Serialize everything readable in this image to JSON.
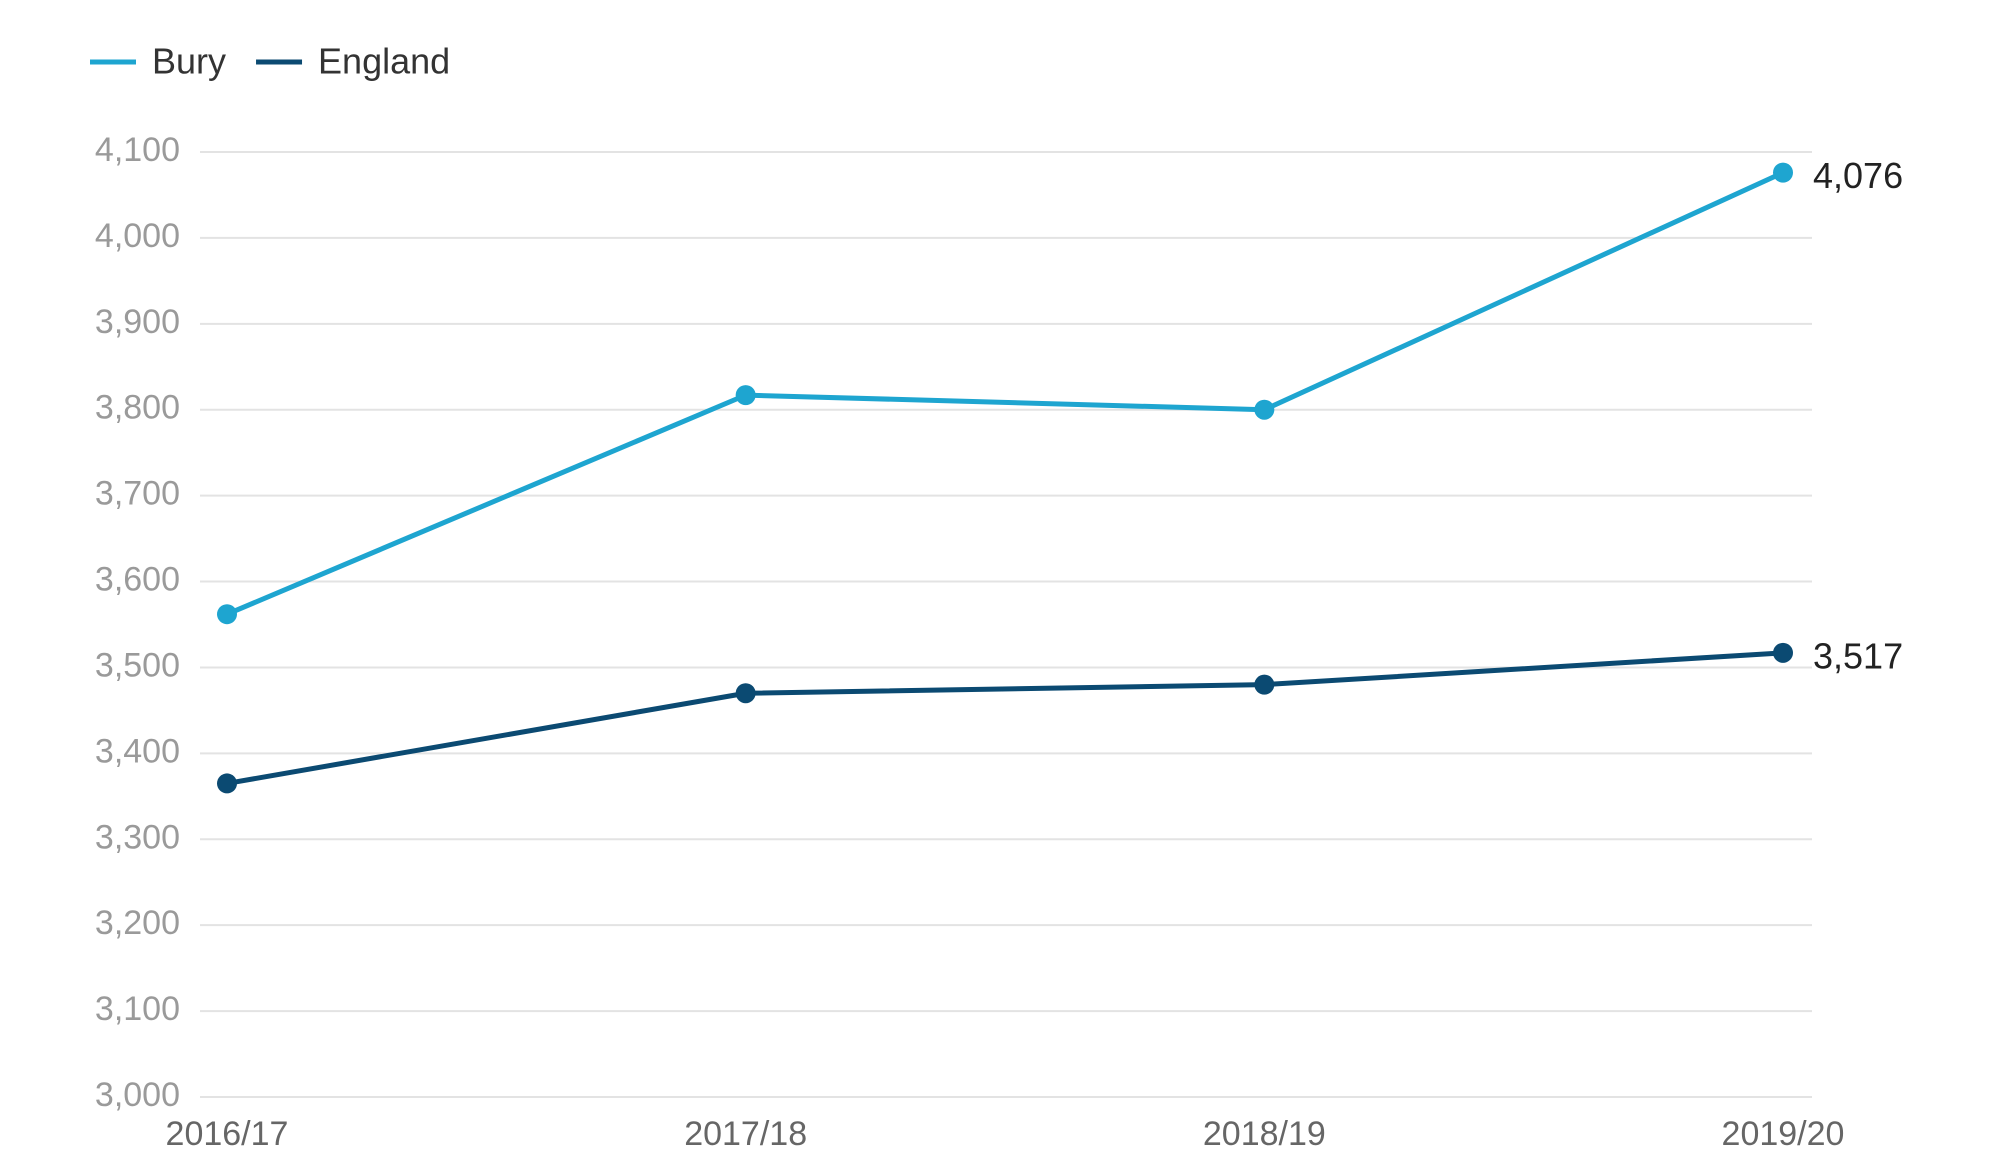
{
  "chart_data": {
    "type": "line",
    "categories": [
      "2016/17",
      "2017/18",
      "2018/19",
      "2019/20"
    ],
    "series": [
      {
        "name": "Bury",
        "color": "#1ea5d0",
        "values": [
          3562,
          3817,
          3800,
          4076
        ],
        "value_labels": [
          null,
          null,
          null,
          "4,076"
        ]
      },
      {
        "name": "England",
        "color": "#0b4a72",
        "values": [
          3365,
          3470,
          3480,
          3517
        ],
        "value_labels": [
          null,
          null,
          null,
          "3,517"
        ]
      }
    ],
    "ylim": [
      3000,
      4100
    ],
    "yticks": [
      {
        "value": 3000,
        "label": "3,000"
      },
      {
        "value": 3100,
        "label": "3,100"
      },
      {
        "value": 3200,
        "label": "3,200"
      },
      {
        "value": 3300,
        "label": "3,300"
      },
      {
        "value": 3400,
        "label": "3,400"
      },
      {
        "value": 3500,
        "label": "3,500"
      },
      {
        "value": 3600,
        "label": "3,600"
      },
      {
        "value": 3700,
        "label": "3,700"
      },
      {
        "value": 3800,
        "label": "3,800"
      },
      {
        "value": 3900,
        "label": "3,900"
      },
      {
        "value": 4000,
        "label": "4,000"
      },
      {
        "value": 4100,
        "label": "4,100"
      }
    ],
    "grid": true,
    "legend": "top-left"
  }
}
